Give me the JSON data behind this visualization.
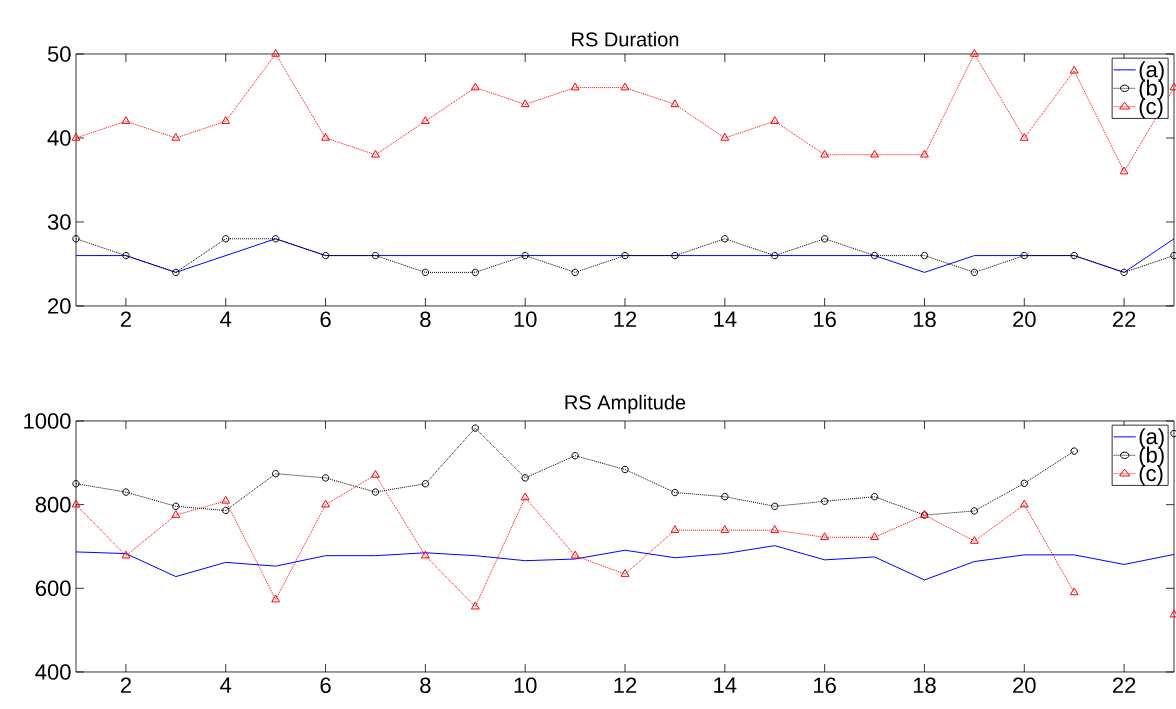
{
  "chart_data": [
    {
      "type": "line",
      "title": "RS Duration",
      "x": [
        1,
        2,
        3,
        4,
        5,
        6,
        7,
        8,
        9,
        10,
        11,
        12,
        13,
        14,
        15,
        16,
        17,
        18,
        19,
        20,
        21,
        22,
        23
      ],
      "series": [
        {
          "name": "(a)",
          "color": "#0000ff",
          "marker": "none",
          "line_style": "solid",
          "values": [
            26,
            26,
            24,
            26,
            28,
            26,
            26,
            26,
            26,
            26,
            26,
            26,
            26,
            26,
            26,
            26,
            26,
            24,
            26,
            26,
            26,
            24,
            28
          ]
        },
        {
          "name": "(b)",
          "color": "#000000",
          "marker": "circle",
          "line_style": "dotted",
          "values": [
            28,
            26,
            24,
            28,
            28,
            26,
            26,
            24,
            24,
            26,
            24,
            26,
            26,
            28,
            26,
            28,
            26,
            26,
            24,
            26,
            26,
            24,
            26
          ]
        },
        {
          "name": "(c)",
          "color": "#ff0000",
          "marker": "triangle",
          "line_style": "dotted",
          "values": [
            40,
            42,
            40,
            42,
            50,
            40,
            38,
            42,
            46,
            44,
            46,
            46,
            44,
            40,
            42,
            38,
            38,
            38,
            50,
            40,
            48,
            36,
            46
          ]
        }
      ],
      "xlim": [
        1,
        23
      ],
      "ylim": [
        20,
        50
      ],
      "xticks": [
        2,
        4,
        6,
        8,
        10,
        12,
        14,
        16,
        18,
        20,
        22
      ],
      "yticks": [
        20,
        30,
        40,
        50
      ],
      "legend": "top right",
      "grid": false
    },
    {
      "type": "line",
      "title": "RS Amplitude",
      "x": [
        1,
        2,
        3,
        4,
        5,
        6,
        7,
        8,
        9,
        10,
        11,
        12,
        13,
        14,
        15,
        16,
        17,
        18,
        19,
        20,
        21,
        22,
        23
      ],
      "series": [
        {
          "name": "(a)",
          "color": "#0000ff",
          "marker": "none",
          "line_style": "solid",
          "values": [
            687,
            683,
            628,
            662,
            653,
            678,
            678,
            685,
            678,
            666,
            670,
            691,
            673,
            683,
            702,
            668,
            675,
            620,
            664,
            680,
            680,
            657,
            681
          ]
        },
        {
          "name": "(b)",
          "color": "#000000",
          "marker": "circle",
          "line_style": "dotted",
          "values": [
            850,
            830,
            796,
            786,
            874,
            864,
            830,
            850,
            983,
            864,
            917,
            884,
            829,
            819,
            796,
            808,
            819,
            775,
            785,
            851,
            928,
            null,
            970
          ]
        },
        {
          "name": "(c)",
          "color": "#ff0000",
          "marker": "triangle",
          "line_style": "dotted",
          "values": [
            800,
            678,
            775,
            809,
            573,
            800,
            871,
            678,
            556,
            817,
            678,
            634,
            739,
            739,
            739,
            722,
            722,
            775,
            713,
            800,
            590,
            null,
            537
          ]
        }
      ],
      "xlim": [
        1,
        23
      ],
      "ylim": [
        400,
        1000
      ],
      "xticks": [
        2,
        4,
        6,
        8,
        10,
        12,
        14,
        16,
        18,
        20,
        22
      ],
      "yticks": [
        400,
        600,
        800,
        1000
      ],
      "legend": "top right",
      "grid": false
    }
  ]
}
